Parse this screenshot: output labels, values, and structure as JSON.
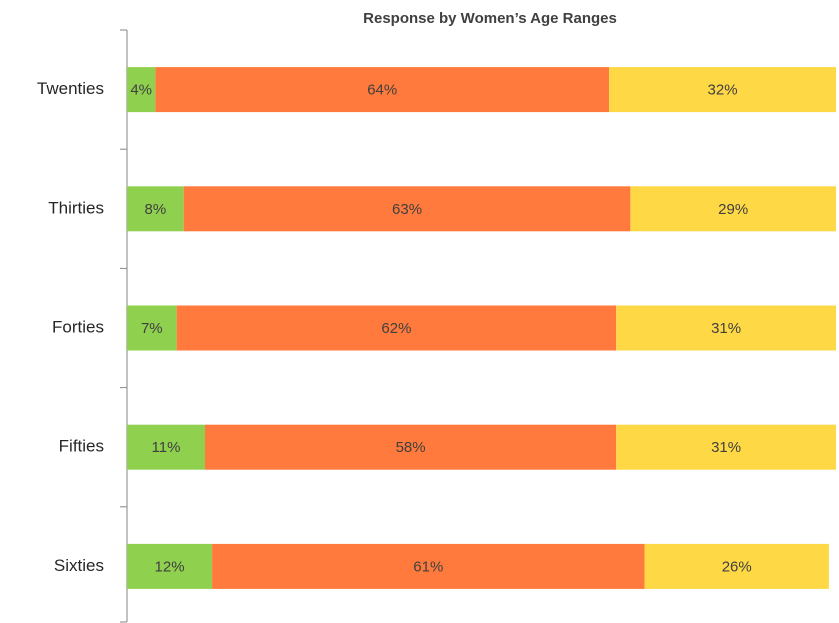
{
  "chart_data": {
    "type": "stacked-bar-horizontal",
    "title": "Response by Women’s Age Ranges",
    "categories": [
      "Twenties",
      "Thirties",
      "Forties",
      "Fifties",
      "Sixties"
    ],
    "xlim": [
      0,
      100
    ],
    "series": [
      {
        "color": "#8fd14f",
        "values": [
          4,
          8,
          7,
          11,
          12
        ],
        "value_labels": [
          "4%",
          "8%",
          "7%",
          "11%",
          "12%"
        ]
      },
      {
        "color": "#ff7a3c",
        "values": [
          64,
          63,
          62,
          58,
          61
        ],
        "value_labels": [
          "64%",
          "63%",
          "62%",
          "58%",
          "61%"
        ]
      },
      {
        "color": "#ffd845",
        "values": [
          32,
          29,
          31,
          31,
          26
        ],
        "value_labels": [
          "32%",
          "29%",
          "31%",
          "31%",
          "26%"
        ]
      }
    ]
  }
}
